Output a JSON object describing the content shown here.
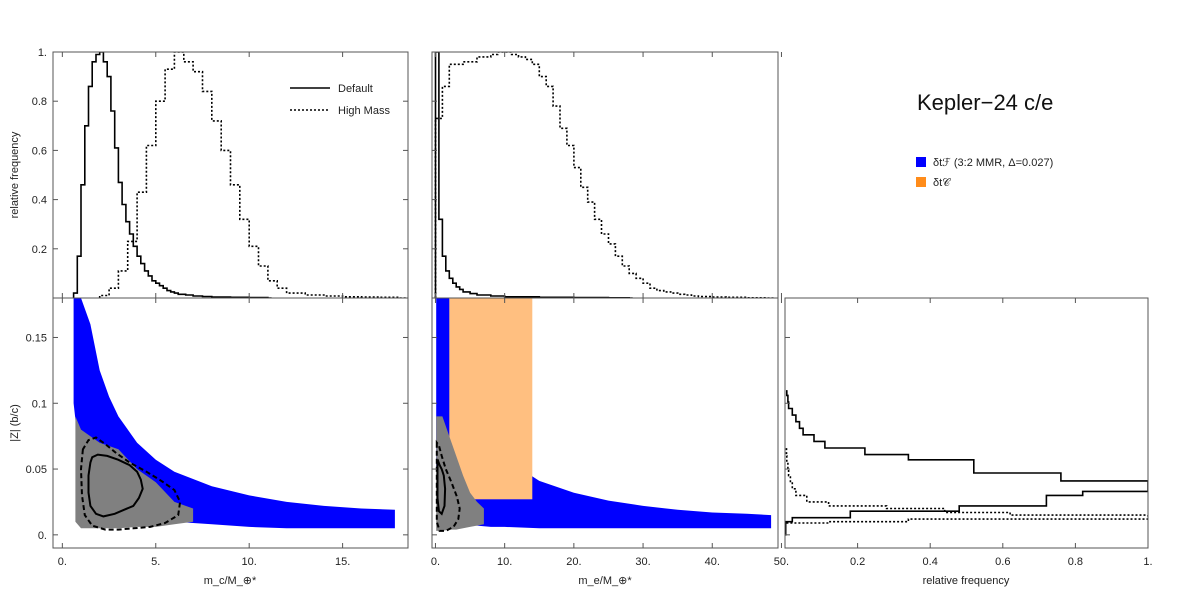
{
  "chart_data": {
    "type": "histogram-corner-plot",
    "title": "Kepler−24 c/e",
    "legend_top": [
      {
        "name": "Default",
        "style": "solid"
      },
      {
        "name": "High Mass",
        "style": "dotted"
      }
    ],
    "legend_right": [
      {
        "name": "δtℱ (3:2 MMR, Δ=0.027)",
        "color": "#0000ff"
      },
      {
        "name": "δt𝒞",
        "color": "#ff8c1a"
      }
    ],
    "colors": {
      "blue": "#0000ff",
      "orange": "#ffbf80",
      "gray": "#808080",
      "line": "#000000"
    },
    "labels": {
      "ylabel_top": "relative frequency",
      "ylabel_bottom": "|Z| (b/c)",
      "xlabel_left": "m_c/M_⊕*",
      "xlabel_mid": "m_e/M_⊕*",
      "xlabel_right": "relative frequency"
    },
    "panels": {
      "top_left": {
        "xlim": [
          -0.5,
          18.5
        ],
        "ylim": [
          0,
          1.0
        ],
        "yticks": [
          0.2,
          0.4,
          0.6,
          0.8,
          1
        ],
        "ytick_labels": [
          "0.2",
          "0.4",
          "0.6",
          "0.8",
          "1."
        ],
        "series": [
          {
            "name": "Default",
            "style": "solid",
            "bin_width": 0.2,
            "x": [
              0.6,
              0.8,
              1.0,
              1.2,
              1.4,
              1.6,
              1.8,
              2.0,
              2.2,
              2.4,
              2.6,
              2.8,
              3.0,
              3.2,
              3.4,
              3.6,
              3.8,
              4.0,
              4.2,
              4.4,
              4.6,
              4.8,
              5.0,
              5.2,
              5.4,
              5.6,
              5.8,
              6.0,
              6.2,
              6.6,
              7.0,
              7.5,
              8.0,
              9.0,
              10.0,
              11.0
            ],
            "y": [
              0.02,
              0.17,
              0.46,
              0.7,
              0.86,
              0.96,
              0.99,
              1.0,
              0.96,
              0.9,
              0.76,
              0.61,
              0.47,
              0.38,
              0.31,
              0.26,
              0.21,
              0.17,
              0.14,
              0.11,
              0.09,
              0.07,
              0.06,
              0.05,
              0.04,
              0.03,
              0.025,
              0.02,
              0.015,
              0.012,
              0.008,
              0.006,
              0.004,
              0.003,
              0.002,
              0.0
            ]
          },
          {
            "name": "High Mass",
            "style": "dotted",
            "bin_width": 0.5,
            "x": [
              2.0,
              2.5,
              3.0,
              3.5,
              4.0,
              4.5,
              5.0,
              5.5,
              6.0,
              6.5,
              7.0,
              7.5,
              8.0,
              8.5,
              9.0,
              9.5,
              10.0,
              10.5,
              11.0,
              11.5,
              12.0,
              13.0,
              14.0,
              15.0,
              16.0,
              17.0,
              18.0
            ],
            "y": [
              0.01,
              0.04,
              0.11,
              0.23,
              0.43,
              0.62,
              0.8,
              0.93,
              1.0,
              0.96,
              0.92,
              0.84,
              0.72,
              0.6,
              0.46,
              0.32,
              0.21,
              0.13,
              0.07,
              0.04,
              0.02,
              0.012,
              0.008,
              0.005,
              0.004,
              0.003,
              0.0
            ]
          }
        ]
      },
      "top_mid": {
        "xlim": [
          -0.5,
          49.5
        ],
        "ylim": [
          0,
          1.0
        ],
        "series": [
          {
            "name": "Default",
            "style": "solid",
            "bin_width": 0.5,
            "x": [
              0.0,
              0.5,
              1.0,
              1.5,
              2.0,
              2.5,
              3.0,
              3.5,
              4.0,
              5.0,
              6.0,
              8.0,
              10.0,
              15.0,
              20.0,
              25.0,
              28.0
            ],
            "y": [
              1.0,
              0.32,
              0.17,
              0.11,
              0.08,
              0.06,
              0.045,
              0.035,
              0.025,
              0.018,
              0.012,
              0.008,
              0.005,
              0.003,
              0.002,
              0.001,
              0.0
            ]
          },
          {
            "name": "High Mass",
            "style": "dotted",
            "bin_width": 1.0,
            "x": [
              0,
              1,
              2,
              3,
              4,
              5,
              6,
              7,
              8,
              9,
              10,
              11,
              12,
              13,
              14,
              15,
              16,
              17,
              18,
              19,
              20,
              21,
              22,
              23,
              24,
              25,
              26,
              27,
              28,
              29,
              30,
              31,
              32,
              33,
              34,
              35,
              36,
              37,
              38,
              40,
              42,
              45,
              48
            ],
            "y": [
              0.73,
              0.86,
              0.95,
              0.95,
              0.96,
              0.96,
              0.98,
              0.98,
              0.99,
              1.0,
              1.0,
              0.99,
              0.98,
              0.97,
              0.95,
              0.9,
              0.86,
              0.78,
              0.69,
              0.62,
              0.53,
              0.45,
              0.39,
              0.32,
              0.26,
              0.22,
              0.17,
              0.13,
              0.1,
              0.08,
              0.06,
              0.04,
              0.03,
              0.025,
              0.02,
              0.015,
              0.012,
              0.008,
              0.006,
              0.004,
              0.003,
              0.001,
              0.0
            ]
          }
        ]
      },
      "bottom_left": {
        "xlim": [
          -0.5,
          18.5
        ],
        "ylim": [
          -0.01,
          0.18
        ],
        "xticks": [
          0,
          5,
          10,
          15
        ],
        "xtick_labels": [
          "0.",
          "5.",
          "10.",
          "15."
        ],
        "yticks": [
          0,
          0.05,
          0.1,
          0.15
        ],
        "ytick_labels": [
          "0.",
          "0.05",
          "0.1",
          "0.15"
        ],
        "blue_band": {
          "x": [
            0.6,
            0.8,
            1.0,
            1.5,
            2.0,
            2.5,
            3.0,
            4.0,
            5.0,
            6.0,
            8.0,
            10.0,
            12.0,
            14.0,
            16.0,
            17.8
          ],
          "upper": [
            0.18,
            0.18,
            0.18,
            0.16,
            0.125,
            0.105,
            0.09,
            0.07,
            0.057,
            0.048,
            0.037,
            0.03,
            0.025,
            0.022,
            0.02,
            0.019
          ],
          "lower": [
            0.1,
            0.075,
            0.055,
            0.04,
            0.03,
            0.024,
            0.02,
            0.015,
            0.012,
            0.01,
            0.008,
            0.006,
            0.005,
            0.005,
            0.005,
            0.005
          ]
        },
        "gray_cloud": {
          "x": [
            0.7,
            1.0,
            1.5,
            2.0,
            3.0,
            4.0,
            5.0,
            6.0,
            7.0
          ],
          "upper": [
            0.09,
            0.08,
            0.075,
            0.07,
            0.065,
            0.05,
            0.04,
            0.025,
            0.02
          ],
          "lower": [
            0.01,
            0.005,
            0.005,
            0.005,
            0.005,
            0.006,
            0.006,
            0.008,
            0.01
          ]
        },
        "contours": [
          {
            "style": "solid",
            "x": [
              1.5,
              1.4,
              1.4,
              1.5,
              1.8,
              2.2,
              2.8,
              3.3,
              3.8,
              4.1,
              4.3,
              4.2,
              4.0,
              3.6,
              3.0,
              2.4,
              1.9,
              1.6,
              1.5
            ],
            "y": [
              0.055,
              0.045,
              0.032,
              0.022,
              0.016,
              0.014,
              0.016,
              0.019,
              0.022,
              0.028,
              0.035,
              0.042,
              0.048,
              0.053,
              0.057,
              0.06,
              0.061,
              0.059,
              0.055
            ]
          },
          {
            "style": "dashed",
            "x": [
              1.1,
              1.0,
              1.05,
              1.2,
              1.6,
              2.3,
              3.0,
              3.8,
              4.7,
              5.5,
              6.2,
              6.3,
              6.0,
              5.3,
              4.5,
              3.6,
              2.9,
              2.3,
              1.8,
              1.4,
              1.1
            ],
            "y": [
              0.065,
              0.05,
              0.03,
              0.015,
              0.007,
              0.004,
              0.004,
              0.005,
              0.006,
              0.009,
              0.015,
              0.025,
              0.034,
              0.041,
              0.048,
              0.055,
              0.062,
              0.069,
              0.074,
              0.072,
              0.065
            ]
          }
        ]
      },
      "bottom_mid": {
        "xlim": [
          -0.5,
          49.5
        ],
        "ylim": [
          -0.01,
          0.18
        ],
        "xticks": [
          0,
          10,
          20,
          30,
          40,
          50
        ],
        "xtick_labels": [
          "0.",
          "10.",
          "20.",
          "30.",
          "40.",
          "50."
        ],
        "orange_rect": {
          "x": [
            2.0,
            14.0
          ],
          "y": [
            0.027,
            0.18
          ]
        },
        "blue_band": {
          "x": [
            0.1,
            0.5,
            1.0,
            2.0,
            3.0,
            4.0,
            6.0,
            8.0,
            10.0,
            15.0,
            20.0,
            25.0,
            30.0,
            35.0,
            40.0,
            45.0,
            48.5
          ],
          "upper": [
            0.18,
            0.18,
            0.18,
            0.18,
            0.14,
            0.12,
            0.088,
            0.07,
            0.058,
            0.041,
            0.032,
            0.026,
            0.022,
            0.019,
            0.017,
            0.016,
            0.015
          ],
          "lower": [
            0.05,
            0.03,
            0.02,
            0.012,
            0.009,
            0.008,
            0.007,
            0.006,
            0.006,
            0.005,
            0.005,
            0.005,
            0.005,
            0.005,
            0.005,
            0.005,
            0.005
          ]
        },
        "gray_cloud": {
          "x": [
            0.1,
            1.0,
            2.0,
            3.0,
            4.0,
            5.0,
            6.0,
            7.0
          ],
          "upper": [
            0.09,
            0.09,
            0.075,
            0.06,
            0.045,
            0.032,
            0.025,
            0.02
          ],
          "lower": [
            0.003,
            0.003,
            0.004,
            0.004,
            0.005,
            0.006,
            0.007,
            0.008
          ]
        },
        "contours": [
          {
            "style": "solid",
            "x": [
              0.3,
              0.3,
              0.5,
              0.9,
              1.3,
              1.4,
              1.2,
              0.9,
              0.6,
              0.4,
              0.3
            ],
            "y": [
              0.055,
              0.028,
              0.018,
              0.016,
              0.022,
              0.035,
              0.045,
              0.05,
              0.053,
              0.056,
              0.055
            ]
          },
          {
            "style": "dashed",
            "x": [
              0.2,
              0.2,
              0.6,
              1.5,
              2.6,
              3.3,
              3.5,
              3.1,
              2.3,
              1.5,
              0.9,
              0.5,
              0.2
            ],
            "y": [
              0.07,
              0.01,
              0.003,
              0.003,
              0.006,
              0.012,
              0.02,
              0.029,
              0.04,
              0.05,
              0.06,
              0.068,
              0.07
            ]
          }
        ]
      },
      "bottom_right": {
        "xlim": [
          0.0,
          1.0
        ],
        "ylim": [
          -0.01,
          0.18
        ],
        "xticks": [
          0.2,
          0.4,
          0.6,
          0.8,
          1.0
        ],
        "xtick_labels": [
          "0.2",
          "0.4",
          "0.6",
          "0.8",
          "1."
        ],
        "series": [
          {
            "name": "Default",
            "style": "solid",
            "steps": [
              [
                0.002,
                0.0,
                0.01
              ],
              [
                0.02,
                0.01,
                0.013
              ],
              [
                0.18,
                0.013,
                0.018
              ],
              [
                0.48,
                0.018,
                0.022
              ],
              [
                0.72,
                0.022,
                0.03
              ],
              [
                0.82,
                0.03,
                0.033
              ],
              [
                1.0,
                0.033,
                0.037
              ],
              [
                1.0,
                0.037,
                0.041
              ],
              [
                0.76,
                0.041,
                0.047
              ],
              [
                0.52,
                0.047,
                0.057
              ],
              [
                0.34,
                0.057,
                0.061
              ],
              [
                0.22,
                0.061,
                0.066
              ],
              [
                0.11,
                0.066,
                0.071
              ],
              [
                0.08,
                0.071,
                0.076
              ],
              [
                0.05,
                0.076,
                0.081
              ],
              [
                0.04,
                0.081,
                0.086
              ],
              [
                0.03,
                0.086,
                0.091
              ],
              [
                0.02,
                0.091,
                0.096
              ],
              [
                0.01,
                0.096,
                0.101
              ],
              [
                0.008,
                0.101,
                0.106
              ],
              [
                0.005,
                0.106,
                0.11
              ]
            ]
          },
          {
            "name": "High Mass",
            "style": "dotted",
            "steps": [
              [
                0.002,
                0.007,
                0.009
              ],
              [
                0.12,
                0.009,
                0.01
              ],
              [
                0.34,
                0.01,
                0.012
              ],
              [
                1.0,
                0.012,
                0.015
              ],
              [
                0.62,
                0.015,
                0.017
              ],
              [
                0.44,
                0.017,
                0.02
              ],
              [
                0.28,
                0.02,
                0.022
              ],
              [
                0.12,
                0.022,
                0.025
              ],
              [
                0.06,
                0.025,
                0.03
              ],
              [
                0.03,
                0.03,
                0.035
              ],
              [
                0.02,
                0.035,
                0.04
              ],
              [
                0.015,
                0.04,
                0.045
              ],
              [
                0.01,
                0.045,
                0.05
              ],
              [
                0.008,
                0.05,
                0.055
              ],
              [
                0.005,
                0.055,
                0.06
              ],
              [
                0.004,
                0.06,
                0.066
              ]
            ]
          }
        ]
      }
    }
  }
}
